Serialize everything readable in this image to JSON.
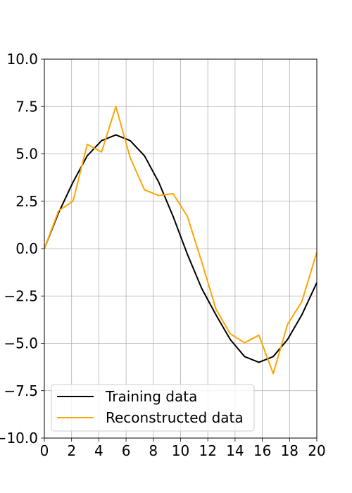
{
  "chart_data": {
    "type": "line",
    "title": "",
    "xlabel": "",
    "ylabel": "",
    "xlim": [
      0,
      20
    ],
    "ylim": [
      -10,
      10
    ],
    "xticks": [
      0,
      2,
      4,
      6,
      8,
      10,
      12,
      14,
      16,
      18,
      20
    ],
    "yticks": [
      -10.0,
      -7.5,
      -5.0,
      -2.5,
      0.0,
      2.5,
      5.0,
      7.5,
      10.0
    ],
    "xtick_labels": [
      "0",
      "2",
      "4",
      "6",
      "8",
      "10",
      "12",
      "14",
      "16",
      "18",
      "20"
    ],
    "ytick_labels": [
      "−10.0",
      "−7.5",
      "−5.0",
      "−2.5",
      "0.0",
      "2.5",
      "5.0",
      "7.5",
      "10.0"
    ],
    "grid": true,
    "legend_position": "lower-left",
    "series": [
      {
        "name": "Training data",
        "color": "#000000",
        "x": [
          0,
          1.05,
          2.1,
          3.15,
          4.2,
          5.25,
          6.3,
          7.35,
          8.4,
          9.45,
          10.5,
          11.55,
          12.6,
          13.65,
          14.7,
          15.75,
          16.8,
          17.85,
          18.9,
          20
        ],
        "y": [
          0.0,
          1.9,
          3.5,
          4.9,
          5.7,
          6.0,
          5.7,
          4.9,
          3.5,
          1.7,
          -0.3,
          -2.1,
          -3.5,
          -4.8,
          -5.7,
          -6.0,
          -5.7,
          -4.8,
          -3.5,
          -1.8
        ]
      },
      {
        "name": "Reconstructed data",
        "color": "#ffa500",
        "x": [
          0,
          1.05,
          2.1,
          3.15,
          4.2,
          5.25,
          6.3,
          7.35,
          8.4,
          9.45,
          10.5,
          11.55,
          12.6,
          13.65,
          14.7,
          15.75,
          16.8,
          17.85,
          18.9,
          20
        ],
        "y": [
          0.0,
          2.0,
          2.5,
          5.5,
          5.1,
          7.5,
          4.8,
          3.1,
          2.8,
          2.9,
          1.7,
          -0.7,
          -3.2,
          -4.5,
          -4.97,
          -4.57,
          -6.6,
          -4.0,
          -2.8,
          -0.2
        ]
      }
    ]
  }
}
